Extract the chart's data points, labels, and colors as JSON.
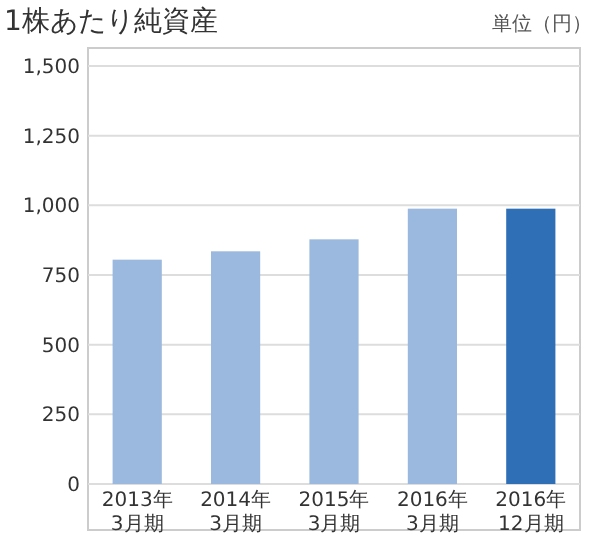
{
  "chart_data": {
    "type": "bar",
    "title": "1株あたり純資産",
    "annotations": [
      "単位（円）"
    ],
    "categories": [
      "2013年\n3月期",
      "2014年\n3月期",
      "2015年\n3月期",
      "2016年\n3月期",
      "2016年\n12月期"
    ],
    "values": [
      805,
      835,
      878,
      988,
      988
    ],
    "colors": [
      "#9bb9de",
      "#9bb9de",
      "#9bb9de",
      "#9bb9de",
      "#2f6fb5"
    ],
    "ylim": [
      0,
      1500
    ],
    "yticks": [
      0,
      250,
      {
        "value": 500,
        "label": "500"
      },
      750,
      {
        "value": 1000,
        "label": "1,000"
      },
      {
        "value": 1250,
        "label": "1,250"
      },
      {
        "value": 1500,
        "label": "1,500"
      }
    ],
    "grid": "y"
  }
}
